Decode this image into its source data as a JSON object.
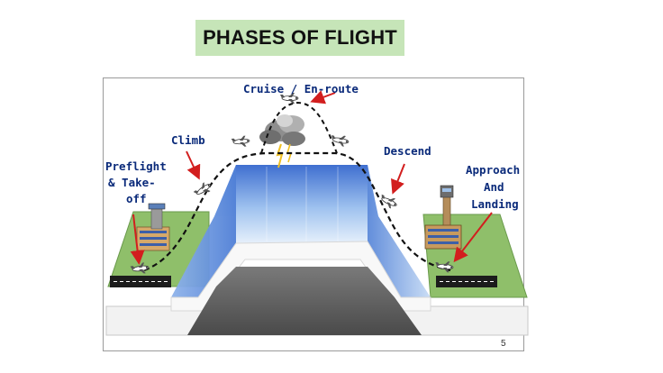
{
  "title": "PHASES OF FLIGHT",
  "labels": {
    "cruise": "Cruise / En-route",
    "climb": "Climb",
    "descend": "Descend",
    "preflight": [
      "Preflight",
      "& Take-",
      "off"
    ],
    "approach": [
      "Approach",
      "And",
      "Landing"
    ]
  },
  "page_number": "5",
  "colors": {
    "title_bg": "#c6e5b8",
    "label_text": "#0a2a7a",
    "arrow": "#d21e1e",
    "sky": "#6f9fe0",
    "ground": "#8fbf6a",
    "road": "#5c5c5c"
  }
}
